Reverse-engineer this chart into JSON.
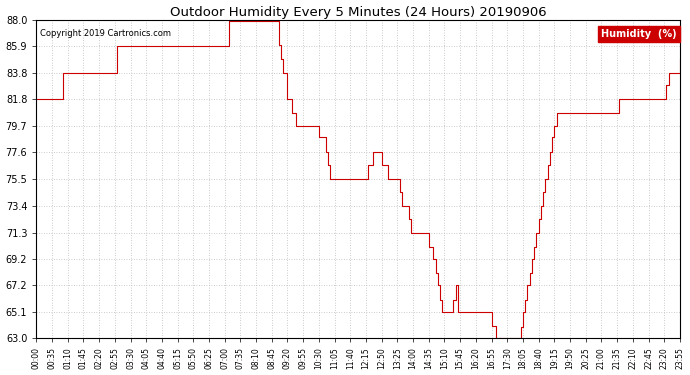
{
  "title": "Outdoor Humidity Every 5 Minutes (24 Hours) 20190906",
  "copyright": "Copyright 2019 Cartronics.com",
  "legend_label": "Humidity  (%)",
  "legend_bg": "#cc0000",
  "legend_text_color": "#ffffff",
  "line_color": "#cc0000",
  "background_color": "#ffffff",
  "grid_color": "#bbbbbb",
  "ylim": [
    63.0,
    88.0
  ],
  "yticks": [
    63.0,
    65.1,
    67.2,
    69.2,
    71.3,
    73.4,
    75.5,
    77.6,
    79.7,
    81.8,
    83.8,
    85.9,
    88.0
  ],
  "humidity_values": [
    81.8,
    81.8,
    81.8,
    81.8,
    81.8,
    81.8,
    81.8,
    81.8,
    81.8,
    81.8,
    81.8,
    81.8,
    83.8,
    83.8,
    83.8,
    83.8,
    83.8,
    83.8,
    83.8,
    83.8,
    83.8,
    83.8,
    83.8,
    83.8,
    83.8,
    83.8,
    83.8,
    83.8,
    83.8,
    83.8,
    83.8,
    83.8,
    83.8,
    83.8,
    83.8,
    83.8,
    85.9,
    85.9,
    85.9,
    85.9,
    85.9,
    85.9,
    85.9,
    85.9,
    85.9,
    85.9,
    85.9,
    85.9,
    85.9,
    85.9,
    85.9,
    85.9,
    85.9,
    85.9,
    85.9,
    85.9,
    85.9,
    85.9,
    85.9,
    85.9,
    85.9,
    85.9,
    85.9,
    85.9,
    85.9,
    85.9,
    85.9,
    85.9,
    85.9,
    85.9,
    85.9,
    85.9,
    85.9,
    85.9,
    85.9,
    85.9,
    85.9,
    85.9,
    85.9,
    85.9,
    85.9,
    85.9,
    85.9,
    85.9,
    85.9,
    85.9,
    87.9,
    87.9,
    87.9,
    87.9,
    87.9,
    87.9,
    87.9,
    87.9,
    87.9,
    87.9,
    87.9,
    87.9,
    87.9,
    87.9,
    87.9,
    87.9,
    87.9,
    87.9,
    87.9,
    87.9,
    87.9,
    87.9,
    86.0,
    84.9,
    83.8,
    83.8,
    81.8,
    81.8,
    80.7,
    80.7,
    79.7,
    79.7,
    79.7,
    79.7,
    79.7,
    79.7,
    79.7,
    79.7,
    79.7,
    79.7,
    78.8,
    78.8,
    78.8,
    77.6,
    76.6,
    75.5,
    75.5,
    75.5,
    75.5,
    75.5,
    75.5,
    75.5,
    75.5,
    75.5,
    75.5,
    75.5,
    75.5,
    75.5,
    75.5,
    75.5,
    75.5,
    75.5,
    76.6,
    76.6,
    77.6,
    77.6,
    77.6,
    77.6,
    76.6,
    76.6,
    76.6,
    75.5,
    75.5,
    75.5,
    75.5,
    75.5,
    74.5,
    73.4,
    73.4,
    73.4,
    72.4,
    71.3,
    71.3,
    71.3,
    71.3,
    71.3,
    71.3,
    71.3,
    71.3,
    70.2,
    70.2,
    69.2,
    68.1,
    67.2,
    66.0,
    65.1,
    65.1,
    65.1,
    65.1,
    65.1,
    66.0,
    67.2,
    65.1,
    65.1,
    65.1,
    65.1,
    65.1,
    65.1,
    65.1,
    65.1,
    65.1,
    65.1,
    65.1,
    65.1,
    65.1,
    65.1,
    65.1,
    64.0,
    64.0,
    63.0,
    63.0,
    63.0,
    63.0,
    63.0,
    63.0,
    63.0,
    63.0,
    63.0,
    63.0,
    63.0,
    63.9,
    65.1,
    66.0,
    67.2,
    68.1,
    69.2,
    70.2,
    71.3,
    72.4,
    73.4,
    74.5,
    75.5,
    76.6,
    77.6,
    78.8,
    79.7,
    80.7,
    80.7,
    80.7,
    80.7,
    80.7,
    80.7,
    80.7,
    80.7,
    80.7,
    80.7,
    80.7,
    80.7,
    80.7,
    80.7,
    80.7,
    80.7,
    80.7,
    80.7,
    80.7,
    80.7,
    80.7,
    80.7,
    80.7,
    80.7,
    80.7,
    80.7,
    80.7,
    80.7,
    81.8,
    81.8,
    81.8,
    81.8,
    81.8,
    81.8,
    81.8,
    81.8,
    81.8,
    81.8,
    81.8,
    81.8,
    81.8,
    81.8,
    81.8,
    81.8,
    81.8,
    81.8,
    81.8,
    81.8,
    81.8,
    82.9,
    83.8,
    83.8,
    83.8,
    83.8,
    83.8,
    84.9
  ]
}
